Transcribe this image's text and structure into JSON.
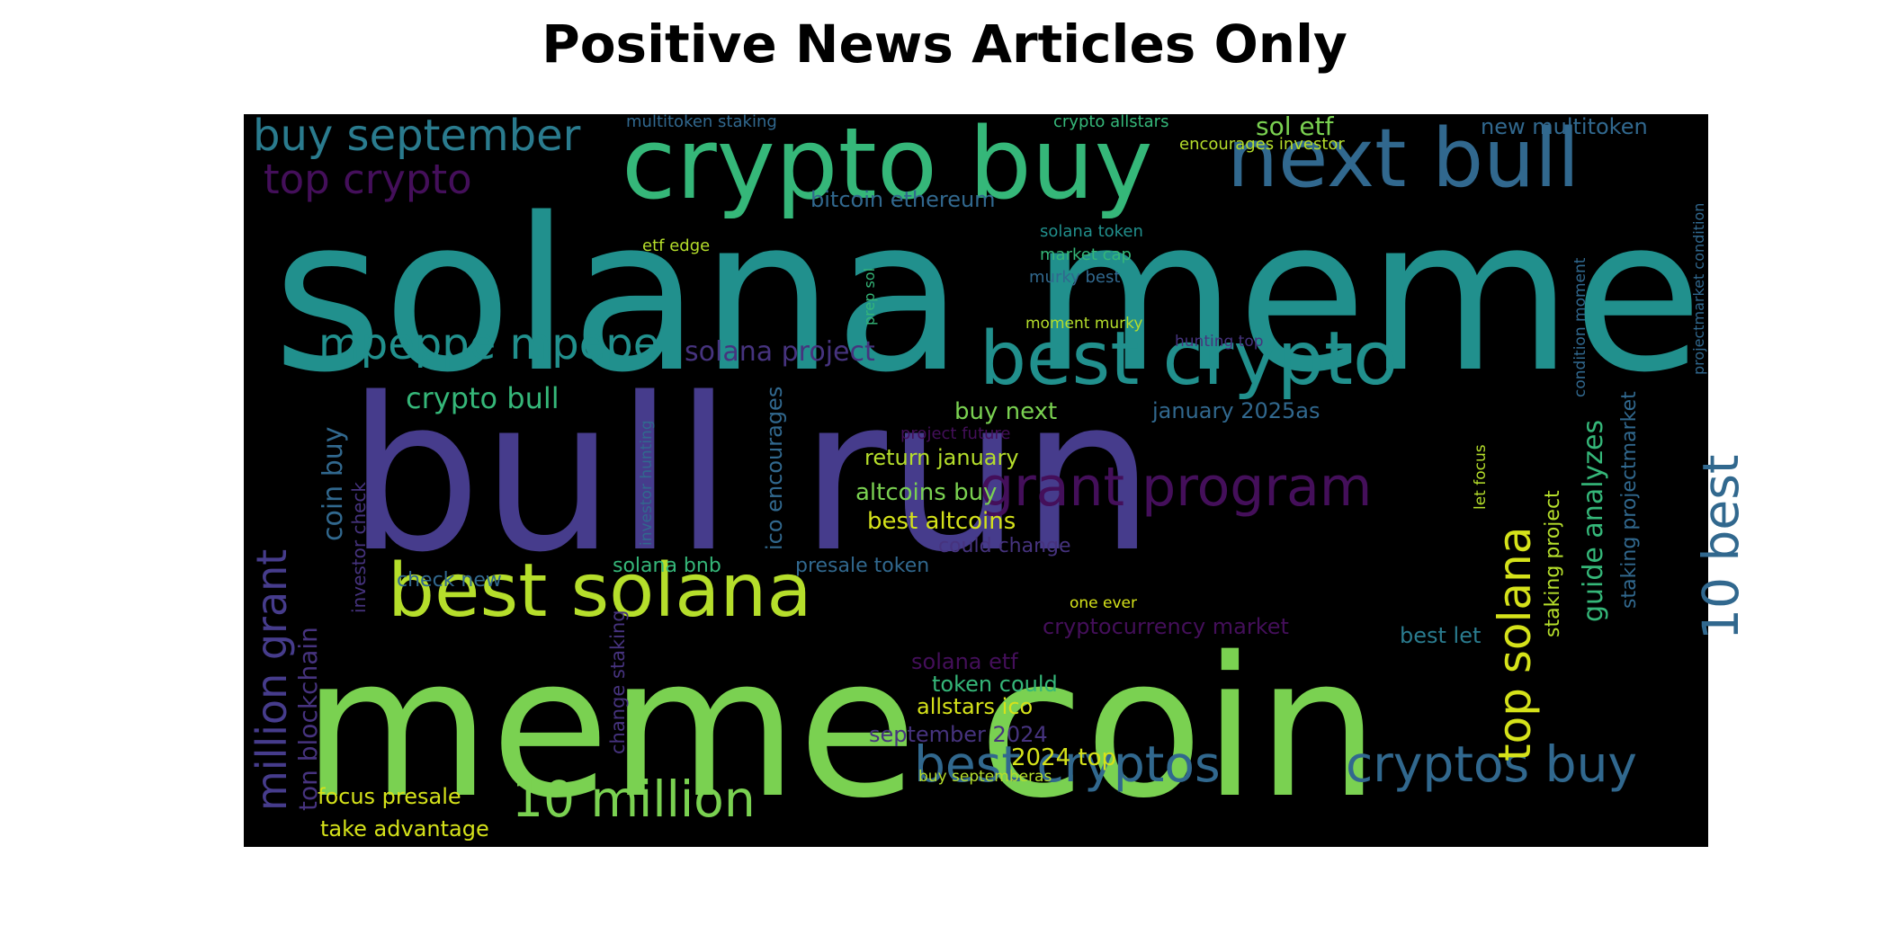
{
  "title": "Positive News Articles Only",
  "palette": {
    "purple": "#3b1a5e",
    "indigo": "#463c8c",
    "blue": "#31688e",
    "teal": "#21908d",
    "green": "#35b779",
    "lime": "#7ad151",
    "yellow": "#c2df23"
  },
  "words": [
    {
      "text": "solana meme",
      "color": "#21908d"
    },
    {
      "text": "bull run",
      "color": "#463c8c"
    },
    {
      "text": "meme coin",
      "color": "#7ad151"
    },
    {
      "text": "crypto buy",
      "color": "#35b779"
    },
    {
      "text": "next bull",
      "color": "#31688e"
    },
    {
      "text": "best crypto",
      "color": "#21908d"
    },
    {
      "text": "best solana",
      "color": "#b5de2b"
    },
    {
      "text": "grant program",
      "color": "#440f5a"
    },
    {
      "text": "best cryptos",
      "color": "#31688e"
    },
    {
      "text": "cryptos buy",
      "color": "#31688e"
    },
    {
      "text": "10 million",
      "color": "#7ad151"
    },
    {
      "text": "buy september",
      "color": "#2a7b8e"
    },
    {
      "text": "top crypto",
      "color": "#440f5a"
    },
    {
      "text": "mpeppe mpepe",
      "color": "#21908d"
    },
    {
      "text": "million grant",
      "color": "#463c8c"
    },
    {
      "text": "solana project",
      "color": "#46337e"
    },
    {
      "text": "crypto bull",
      "color": "#35b779"
    },
    {
      "text": "coin buy",
      "color": "#31688e"
    },
    {
      "text": "ton blockchain",
      "color": "#46337e"
    },
    {
      "text": "top solana",
      "color": "#d5e21a"
    },
    {
      "text": "10 best",
      "color": "#31688e"
    },
    {
      "text": "guide analyzes",
      "color": "#35b779"
    },
    {
      "text": "sol etf",
      "color": "#7ad151"
    },
    {
      "text": "new multitoken",
      "color": "#31688e"
    },
    {
      "text": "multitoken staking",
      "color": "#31688e"
    },
    {
      "text": "crypto allstars",
      "color": "#35b779"
    },
    {
      "text": "encourages investor",
      "color": "#b5de2b"
    },
    {
      "text": "bitcoin ethereum",
      "color": "#31688e"
    },
    {
      "text": "solana token",
      "color": "#21908d"
    },
    {
      "text": "market cap",
      "color": "#35b779"
    },
    {
      "text": "murky best",
      "color": "#31688e"
    },
    {
      "text": "etf edge",
      "color": "#b5de2b"
    },
    {
      "text": "prep sol",
      "color": "#35b779"
    },
    {
      "text": "moment murky",
      "color": "#b5de2b"
    },
    {
      "text": "hunting top",
      "color": "#46337e"
    },
    {
      "text": "condition moment",
      "color": "#31688e"
    },
    {
      "text": "projectmarket condition",
      "color": "#31688e"
    },
    {
      "text": "buy next",
      "color": "#7ad151"
    },
    {
      "text": "january 2025as",
      "color": "#31688e"
    },
    {
      "text": "project future",
      "color": "#440f5a"
    },
    {
      "text": "return january",
      "color": "#b5de2b"
    },
    {
      "text": "altcoins buy",
      "color": "#7ad151"
    },
    {
      "text": "best altcoins",
      "color": "#d5e21a"
    },
    {
      "text": "could change",
      "color": "#46337e"
    },
    {
      "text": "investor check",
      "color": "#46337e"
    },
    {
      "text": "investor hunting",
      "color": "#31688e"
    },
    {
      "text": "ico encourages",
      "color": "#31688e"
    },
    {
      "text": "check new",
      "color": "#31688e"
    },
    {
      "text": "solana bnb",
      "color": "#35b779"
    },
    {
      "text": "presale token",
      "color": "#31688e"
    },
    {
      "text": "let focus",
      "color": "#b5de2b"
    },
    {
      "text": "staking project",
      "color": "#b5de2b"
    },
    {
      "text": "staking projectmarket",
      "color": "#31688e"
    },
    {
      "text": "one ever",
      "color": "#d5e21a"
    },
    {
      "text": "cryptocurrency market",
      "color": "#440f5a"
    },
    {
      "text": "best let",
      "color": "#2a7b8e"
    },
    {
      "text": "change staking",
      "color": "#46337e"
    },
    {
      "text": "solana etf",
      "color": "#440f5a"
    },
    {
      "text": "token could",
      "color": "#35b779"
    },
    {
      "text": "allstars ico",
      "color": "#d5e21a"
    },
    {
      "text": "september 2024",
      "color": "#46337e"
    },
    {
      "text": "2024 top",
      "color": "#d5e21a"
    },
    {
      "text": "buy septemberas",
      "color": "#b5de2b"
    },
    {
      "text": "focus presale",
      "color": "#d5e21a"
    },
    {
      "text": "take advantage",
      "color": "#d5e21a"
    }
  ]
}
